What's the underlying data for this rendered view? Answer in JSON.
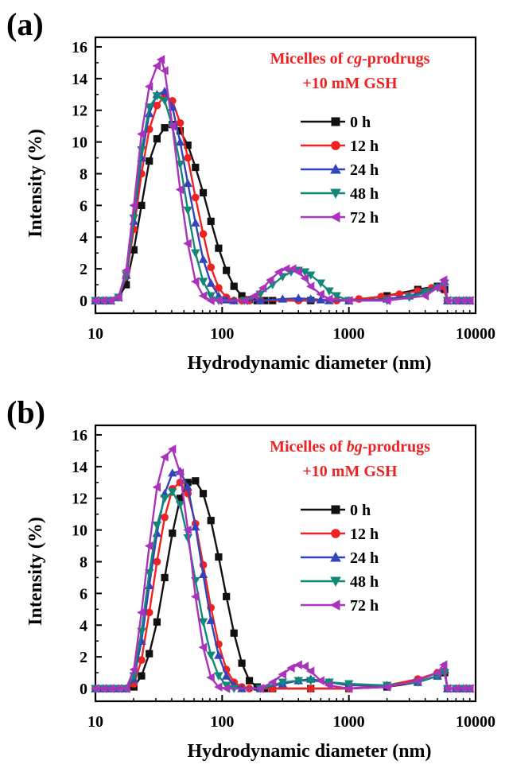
{
  "colors": {
    "0 h": "#111111",
    "12 h": "#ee2222",
    "24 h": "#3344bb",
    "48 h": "#118877",
    "72 h": "#aa33bb"
  },
  "chart_data": [
    {
      "panel": "(a)",
      "type": "line",
      "xscale": "log",
      "xlim": [
        10,
        10000
      ],
      "ylim": [
        -0.8,
        16.6
      ],
      "xticks": [
        "10",
        "100",
        "1000",
        "10000"
      ],
      "yticks": [
        "0",
        "2",
        "4",
        "6",
        "8",
        "10",
        "12",
        "14",
        "16"
      ],
      "xlabel": "Hydrodynamic diameter (nm)",
      "ylabel": "Intensity (%)",
      "annotation": {
        "line1_prefix": "Micelles of ",
        "line1_italic": "cg",
        "line1_suffix": "-prodrugs",
        "line2": "+10 mM GSH"
      },
      "legend_labels": [
        "0 h",
        "12 h",
        "24 h",
        "48 h",
        "72 h"
      ],
      "series": [
        {
          "name": "0 h",
          "marker": "square",
          "x": [
            10,
            11.5,
            13.2,
            15.2,
            17.5,
            20.1,
            23.1,
            26.6,
            30.6,
            35.2,
            40.5,
            46.6,
            53.6,
            61.6,
            70.9,
            81.5,
            93.8,
            108,
            124,
            143,
            164,
            189,
            217,
            250,
            500,
            1000,
            2000,
            3500,
            5000,
            5700,
            6000,
            7000,
            8000,
            9000
          ],
          "y": [
            0,
            0,
            0,
            0.2,
            1.0,
            3.2,
            6.0,
            8.8,
            10.2,
            10.9,
            11.1,
            10.7,
            9.8,
            8.4,
            6.8,
            5.0,
            3.3,
            1.9,
            0.9,
            0.3,
            0.05,
            0,
            0,
            0,
            0,
            0,
            0.3,
            0.7,
            0.9,
            0.7,
            0,
            0,
            0,
            0
          ]
        },
        {
          "name": "12 h",
          "marker": "circle",
          "x": [
            10,
            11.5,
            13.2,
            15.2,
            17.5,
            20.1,
            23.1,
            26.6,
            30.6,
            35.2,
            40.5,
            46.6,
            53.6,
            61.6,
            70.9,
            81.5,
            93.8,
            108,
            124,
            143,
            164,
            200,
            400,
            800,
            1200,
            1800,
            2500,
            3500,
            4500,
            5500,
            6000,
            7000,
            8000,
            9000
          ],
          "y": [
            0,
            0,
            0,
            0.2,
            1.5,
            4.5,
            8.0,
            10.8,
            12.3,
            12.9,
            12.6,
            11.2,
            9.0,
            6.5,
            4.2,
            2.1,
            0.8,
            0.2,
            0,
            0,
            0,
            0,
            0,
            0,
            0.1,
            0.25,
            0.4,
            0.6,
            0.8,
            0.9,
            0,
            0,
            0,
            0
          ]
        },
        {
          "name": "24 h",
          "marker": "triangle-up",
          "x": [
            10,
            11.5,
            13.2,
            15.2,
            17.5,
            20.1,
            23.1,
            26.6,
            30.6,
            35.2,
            40.5,
            46.6,
            53.6,
            61.6,
            70.9,
            81.5,
            93.8,
            108,
            124,
            200,
            300,
            400,
            500,
            600,
            700,
            1000,
            2000,
            3000,
            4000,
            5000,
            5700,
            6000,
            7000,
            8000,
            9000
          ],
          "y": [
            0,
            0,
            0,
            0.2,
            1.6,
            5.0,
            9.0,
            11.8,
            13.0,
            13.2,
            12.2,
            10.0,
            7.4,
            4.9,
            2.6,
            1.1,
            0.3,
            0.05,
            0,
            0,
            0.1,
            0.15,
            0.1,
            0.05,
            0,
            0,
            0.1,
            0.3,
            0.6,
            0.9,
            1.2,
            0,
            0,
            0,
            0
          ]
        },
        {
          "name": "48 h",
          "marker": "triangle-down",
          "x": [
            10,
            11.5,
            13.2,
            15.2,
            17.5,
            20.1,
            23.1,
            26.6,
            30.6,
            35.2,
            40.5,
            46.6,
            53.6,
            61.6,
            70.9,
            81.5,
            93.8,
            150,
            200,
            250,
            300,
            350,
            400,
            450,
            500,
            600,
            700,
            800,
            1000,
            2000,
            3000,
            4000,
            5000,
            5700,
            6000,
            7000,
            8000,
            9000
          ],
          "y": [
            0,
            0,
            0,
            0.2,
            1.6,
            5.2,
            9.5,
            12.2,
            12.9,
            12.6,
            11.0,
            8.6,
            5.7,
            3.0,
            1.2,
            0.3,
            0,
            0,
            0.4,
            1.0,
            1.5,
            1.8,
            1.9,
            1.8,
            1.6,
            1.1,
            0.6,
            0.3,
            0,
            0,
            0.2,
            0.5,
            0.8,
            1.1,
            0,
            0,
            0,
            0
          ]
        },
        {
          "name": "72 h",
          "marker": "triangle-left",
          "x": [
            10,
            11.5,
            13.2,
            15.2,
            17.5,
            20.1,
            23.1,
            26.6,
            30.6,
            33,
            35.2,
            40.5,
            46.6,
            53.6,
            61.6,
            70.9,
            81.5,
            93.8,
            150,
            180,
            210,
            240,
            280,
            320,
            360,
            400,
            450,
            500,
            600,
            700,
            1000,
            2000,
            4000,
            5000,
            5600,
            6000,
            7000,
            8000,
            9000
          ],
          "y": [
            0,
            0,
            0,
            0.2,
            1.9,
            6.0,
            10.5,
            13.5,
            14.8,
            15.2,
            14.5,
            11.0,
            7.0,
            3.6,
            1.2,
            0.3,
            0,
            0,
            0,
            0.3,
            0.8,
            1.3,
            1.8,
            2.0,
            2.0,
            1.8,
            1.4,
            0.9,
            0.4,
            0.1,
            0,
            0,
            0.3,
            0.8,
            1.3,
            0,
            0,
            0,
            0
          ]
        }
      ]
    },
    {
      "panel": "(b)",
      "type": "line",
      "xscale": "log",
      "xlim": [
        10,
        10000
      ],
      "ylim": [
        -0.8,
        16.6
      ],
      "xticks": [
        "10",
        "100",
        "1000",
        "10000"
      ],
      "yticks": [
        "0",
        "2",
        "4",
        "6",
        "8",
        "10",
        "12",
        "14",
        "16"
      ],
      "xlabel": "Hydrodynamic diameter (nm)",
      "ylabel": "Intensity (%)",
      "annotation": {
        "line1_prefix": "Micelles of ",
        "line1_italic": "bg",
        "line1_suffix": "-prodrugs",
        "line2": "+10 mM GSH"
      },
      "legend_labels": [
        "0 h",
        "12 h",
        "24 h",
        "48 h",
        "72 h"
      ],
      "series": [
        {
          "name": "0 h",
          "marker": "square",
          "x": [
            10,
            11.5,
            13.2,
            15.2,
            17.5,
            20.1,
            23.1,
            26.6,
            30.6,
            35.2,
            40.5,
            46.6,
            53.6,
            61.6,
            70.9,
            81.5,
            93.8,
            108,
            124,
            143,
            164,
            189,
            217,
            250,
            500,
            1000,
            2000,
            3500,
            5000,
            5700,
            6000,
            7000,
            8000,
            9000
          ],
          "y": [
            0,
            0,
            0,
            0,
            0,
            0.1,
            0.8,
            2.2,
            4.2,
            7.0,
            9.8,
            12.0,
            13.0,
            13.1,
            12.3,
            10.6,
            8.3,
            5.8,
            3.5,
            1.6,
            0.5,
            0.1,
            0,
            0,
            0,
            0,
            0.1,
            0.4,
            0.8,
            1.0,
            0,
            0,
            0,
            0
          ]
        },
        {
          "name": "12 h",
          "marker": "circle",
          "x": [
            10,
            11.5,
            13.2,
            15.2,
            17.5,
            20.1,
            23.1,
            26.6,
            30.6,
            35.2,
            40.5,
            46.6,
            53.6,
            61.6,
            70.9,
            81.5,
            93.8,
            108,
            124,
            143,
            164,
            250,
            500,
            1000,
            2000,
            3500,
            5000,
            5700,
            6000,
            7000,
            8000,
            9000
          ],
          "y": [
            0,
            0,
            0,
            0,
            0,
            0.3,
            1.8,
            4.8,
            8.0,
            10.8,
            12.6,
            13.0,
            12.3,
            10.4,
            7.8,
            5.1,
            2.8,
            1.2,
            0.4,
            0.1,
            0,
            0,
            0,
            0,
            0.2,
            0.6,
            1.0,
            1.1,
            0,
            0,
            0,
            0
          ]
        },
        {
          "name": "24 h",
          "marker": "triangle-up",
          "x": [
            10,
            11.5,
            13.2,
            15.2,
            17.5,
            20.1,
            23.1,
            26.6,
            30.6,
            35.2,
            40.5,
            46.6,
            53.6,
            61.6,
            70.9,
            81.5,
            93.8,
            108,
            124,
            143,
            200,
            300,
            400,
            500,
            700,
            1000,
            2000,
            3500,
            5000,
            5700,
            6000,
            7000,
            8000,
            9000
          ],
          "y": [
            0,
            0,
            0,
            0,
            0,
            0.6,
            3.0,
            6.5,
            9.8,
            12.3,
            13.6,
            13.7,
            12.7,
            10.2,
            7.2,
            4.3,
            2.1,
            0.8,
            0.2,
            0,
            0,
            0.3,
            0.5,
            0.6,
            0.4,
            0.2,
            0.2,
            0.4,
            0.8,
            1.2,
            0,
            0,
            0,
            0
          ]
        },
        {
          "name": "48 h",
          "marker": "triangle-down",
          "x": [
            10,
            11.5,
            13.2,
            15.2,
            17.5,
            20.1,
            23.1,
            26.6,
            30.6,
            35.2,
            40.5,
            46.6,
            53.6,
            61.6,
            70.9,
            81.5,
            93.8,
            108,
            124,
            200,
            300,
            400,
            500,
            700,
            1000,
            2000,
            3500,
            5000,
            5700,
            6000,
            7000,
            8000,
            9000
          ],
          "y": [
            0,
            0,
            0,
            0,
            0,
            0.8,
            3.6,
            7.3,
            10.3,
            12.0,
            12.4,
            11.6,
            9.5,
            6.8,
            4.2,
            2.1,
            0.8,
            0.2,
            0,
            0,
            0.4,
            0.5,
            0.5,
            0.4,
            0.3,
            0.2,
            0.4,
            0.8,
            1.0,
            0,
            0,
            0,
            0
          ]
        },
        {
          "name": "72 h",
          "marker": "triangle-left",
          "x": [
            10,
            11.5,
            13.2,
            15.2,
            17.5,
            20.1,
            23.1,
            26.6,
            30.6,
            35.2,
            40.5,
            46.6,
            53.6,
            61.6,
            70.9,
            81.5,
            93.8,
            108,
            200,
            250,
            300,
            350,
            400,
            450,
            500,
            600,
            700,
            1000,
            2000,
            3500,
            5000,
            5600,
            6000,
            7000,
            8000,
            9000
          ],
          "y": [
            0,
            0,
            0,
            0,
            0,
            1.2,
            4.8,
            9.0,
            12.7,
            14.6,
            15.1,
            13.6,
            10.0,
            5.8,
            2.6,
            0.7,
            0.1,
            0,
            0,
            0.4,
            0.9,
            1.3,
            1.5,
            1.4,
            1.1,
            0.5,
            0.2,
            0,
            0.1,
            0.5,
            1.0,
            1.5,
            0,
            0,
            0,
            0
          ]
        }
      ]
    }
  ]
}
